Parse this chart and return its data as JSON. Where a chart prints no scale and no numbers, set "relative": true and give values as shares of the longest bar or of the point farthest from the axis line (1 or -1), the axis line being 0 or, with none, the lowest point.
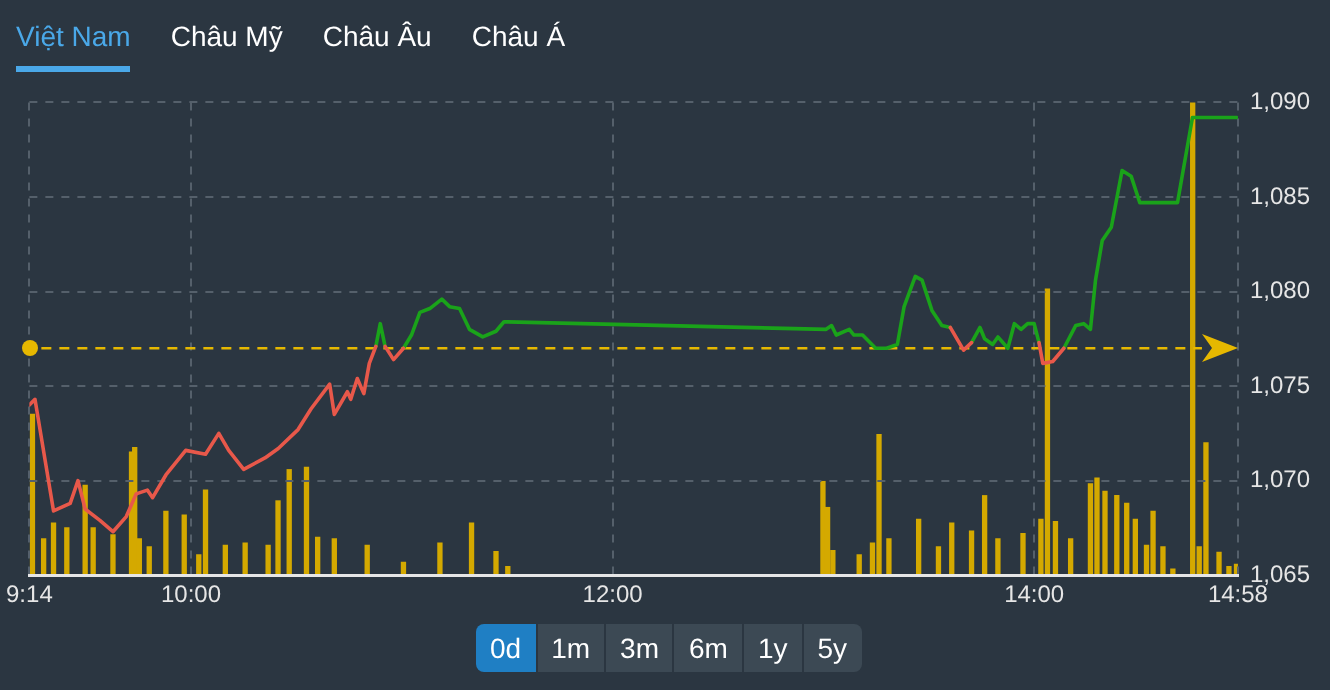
{
  "chart_data": [
    {
      "type": "line",
      "annotations": [
        "Việt Nam",
        "Châu Mỹ",
        "Châu Âu",
        "Châu Á",
        "0d",
        "1m",
        "3m",
        "6m",
        "1y",
        "5y"
      ],
      "xlim": [
        9.2333,
        14.9667
      ],
      "xticks": [
        {
          "value": 9.2333,
          "label": "9:14"
        },
        {
          "value": 10,
          "label": "10:00"
        },
        {
          "value": 12,
          "label": "12:00"
        },
        {
          "value": 14,
          "label": "14:00"
        },
        {
          "value": 14.9667,
          "label": "14:58"
        }
      ],
      "ylim": [
        1065,
        1090
      ],
      "yticks": [
        {
          "value": 1065,
          "label": "1,065"
        },
        {
          "value": 1070,
          "label": "1,070"
        },
        {
          "value": 1075,
          "label": "1,075"
        },
        {
          "value": 1080,
          "label": "1,080"
        },
        {
          "value": 1085,
          "label": "1,085"
        },
        {
          "value": 1090,
          "label": "1,090"
        }
      ],
      "grid": true,
      "marker": "none",
      "line_style": "solid",
      "ref_lines": [
        {
          "axis": "y",
          "value": 1077.0,
          "color": "#e6b800",
          "line_style": "dashed"
        }
      ],
      "series": [
        {
          "color": "#1aa31a",
          "x": [
            10.877,
            10.898,
            10.921,
            10.94,
            11.008,
            11.046,
            11.086,
            11.133,
            11.19,
            11.227,
            11.274,
            11.321,
            11.384,
            11.447,
            11.485,
            13.013,
            13.039,
            13.061,
            13.123,
            13.145,
            13.186,
            13.248,
            13.3,
            13.351,
            13.383,
            13.436,
            13.468,
            13.515,
            13.562,
            13.602,
            13.65,
            13.703,
            13.743,
            13.765,
            13.803,
            13.828,
            13.875,
            13.906,
            13.938,
            13.969,
            14.0,
            14.023,
            14.08,
            14.141,
            14.197,
            14.235,
            14.267,
            14.291,
            14.323,
            14.366,
            14.417,
            14.46,
            14.501,
            14.68,
            14.751,
            14.962
          ],
          "values": [
            1077.1,
            1078.3,
            1077.1,
            null,
            1077.0,
            1077.7,
            1078.9,
            1079.1,
            1079.6,
            1079.2,
            1079.1,
            1078.0,
            1077.6,
            1077.9,
            1078.4,
            1078.0,
            1078.2,
            1077.7,
            1078.0,
            1077.7,
            1077.7,
            1077.0,
            1077.0,
            1077.2,
            1079.2,
            1080.8,
            1080.6,
            1079.0,
            1078.2,
            1078.1,
            null,
            1077.3,
            1078.1,
            1077.5,
            1077.2,
            1077.6,
            1077.0,
            1078.3,
            1078.0,
            1078.3,
            1078.3,
            1077.3,
            null,
            1077.0,
            1078.2,
            1078.3,
            1078.0,
            1080.6,
            1082.7,
            1083.4,
            1086.4,
            1086.1,
            1084.7,
            1084.7,
            1089.2,
            1089.2
          ]
        },
        {
          "color": "#e8584a",
          "x": [
            9.2333,
            9.26,
            9.348,
            9.427,
            9.464,
            9.498,
            9.568,
            9.63,
            9.693,
            9.74,
            9.793,
            9.818,
            9.881,
            9.975,
            10.069,
            10.132,
            10.179,
            10.25,
            10.351,
            10.414,
            10.508,
            10.57,
            10.658,
            10.68,
            10.742,
            10.758,
            10.789,
            10.82,
            10.846,
            10.877,
            10.9,
            10.921,
            10.961,
            11.008,
            11.1,
            13.602,
            13.665,
            13.703,
            13.9,
            14.023,
            14.041,
            14.088,
            14.141
          ],
          "values": [
            1074.0,
            1074.3,
            1068.4,
            1068.8,
            1070.0,
            1068.5,
            1067.9,
            1067.3,
            1068.1,
            1069.3,
            1069.5,
            1069.1,
            1070.3,
            1071.6,
            1071.4,
            1072.5,
            1071.6,
            1070.6,
            1071.2,
            1071.7,
            1072.7,
            1073.8,
            1075.1,
            1073.5,
            1074.7,
            1074.3,
            1075.4,
            1074.6,
            1076.2,
            1077.1,
            null,
            1077.1,
            1076.4,
            1077.0,
            null,
            1078.1,
            1076.9,
            1077.3,
            null,
            1077.3,
            1076.2,
            1076.3,
            1077.0
          ]
        }
      ]
    },
    {
      "type": "bar",
      "relative": true,
      "xlim": [
        9.2333,
        14.9667
      ],
      "series": [
        {
          "color": "#d4a900",
          "x": [
            9.248,
            9.301,
            9.348,
            9.411,
            9.498,
            9.536,
            9.63,
            9.718,
            9.733,
            9.755,
            9.802,
            9.881,
            9.968,
            10.037,
            10.069,
            10.163,
            10.257,
            10.366,
            10.413,
            10.466,
            10.548,
            10.601,
            10.68,
            10.836,
            11.008,
            11.181,
            11.331,
            11.447,
            11.503,
            12.998,
            13.02,
            13.045,
            13.17,
            13.233,
            13.264,
            13.311,
            13.452,
            13.546,
            13.609,
            13.703,
            13.765,
            13.828,
            13.947,
            14.032,
            14.063,
            14.101,
            14.173,
            14.267,
            14.298,
            14.336,
            14.392,
            14.439,
            14.48,
            14.533,
            14.564,
            14.611,
            14.658,
            14.752,
            14.783,
            14.815,
            14.877,
            14.924,
            14.96
          ],
          "values": [
            0.34,
            0.077,
            0.11,
            0.1,
            0.19,
            0.1,
            0.085,
            0.26,
            0.27,
            0.077,
            0.06,
            0.135,
            0.127,
            0.043,
            0.18,
            0.063,
            0.068,
            0.063,
            0.157,
            0.223,
            0.228,
            0.08,
            0.077,
            0.063,
            0.027,
            0.068,
            0.11,
            0.05,
            0.018,
            0.198,
            0.143,
            0.052,
            0.043,
            0.068,
            0.297,
            0.077,
            0.118,
            0.06,
            0.11,
            0.093,
            0.168,
            0.077,
            0.088,
            0.118,
            0.605,
            0.113,
            0.077,
            0.193,
            0.205,
            0.177,
            0.168,
            0.152,
            0.118,
            0.063,
            0.135,
            0.06,
            0.013,
            1.0,
            0.06,
            0.28,
            0.048,
            0.018,
            0.023
          ]
        }
      ]
    }
  ]
}
